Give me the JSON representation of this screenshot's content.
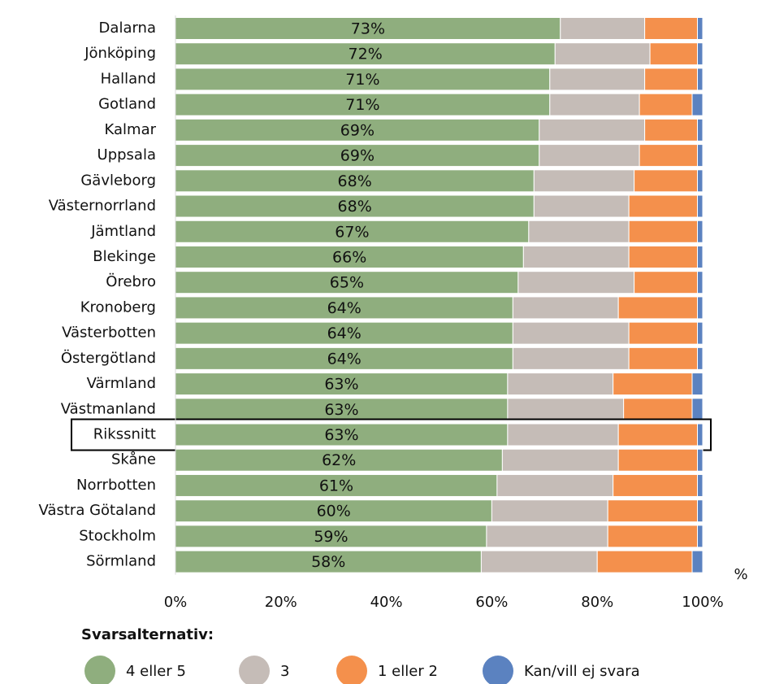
{
  "chart_data": {
    "type": "stacked_bar_horizontal",
    "categories": [
      "Dalarna",
      "Jönköping",
      "Halland",
      "Gotland",
      "Kalmar",
      "Uppsala",
      "Gävleborg",
      "Västernorrland",
      "Jämtland",
      "Blekinge",
      "Örebro",
      "Kronoberg",
      "Västerbotten",
      "Östergötland",
      "Värmland",
      "Västmanland",
      "Rikssnitt",
      "Skåne",
      "Norrbotten",
      "Västra Götaland",
      "Stockholm",
      "Sörmland"
    ],
    "highlight": "Rikssnitt",
    "series": [
      {
        "name": "4 eller 5",
        "color": "#8fae7e",
        "values": [
          73,
          72,
          71,
          71,
          69,
          69,
          68,
          68,
          67,
          66,
          65,
          64,
          64,
          64,
          63,
          63,
          63,
          62,
          61,
          60,
          59,
          58
        ],
        "value_labels": [
          "73%",
          "72%",
          "71%",
          "71%",
          "69%",
          "69%",
          "68%",
          "68%",
          "67%",
          "66%",
          "65%",
          "64%",
          "64%",
          "64%",
          "63%",
          "63%",
          "63%",
          "62%",
          "61%",
          "60%",
          "59%",
          "58%"
        ]
      },
      {
        "name": "3",
        "color": "#c5bcb7",
        "values": [
          16,
          18,
          18,
          17,
          20,
          19,
          19,
          18,
          19,
          20,
          22,
          20,
          22,
          22,
          20,
          22,
          21,
          22,
          22,
          22,
          23,
          22
        ]
      },
      {
        "name": "1 eller 2",
        "color": "#f4904c",
        "values": [
          10,
          9,
          10,
          10,
          10,
          11,
          12,
          13,
          13,
          13,
          12,
          15,
          13,
          13,
          15,
          13,
          15,
          15,
          16,
          17,
          17,
          18
        ]
      },
      {
        "name": "Kan/vill ej svara",
        "color": "#5b82c0",
        "values": [
          1,
          1,
          1,
          2,
          1,
          1,
          1,
          1,
          1,
          1,
          1,
          1,
          1,
          1,
          2,
          2,
          1,
          1,
          1,
          1,
          1,
          2
        ]
      }
    ],
    "xlim": [
      0,
      100
    ],
    "xticks": [
      {
        "value": 0,
        "label": "0%"
      },
      {
        "value": 20,
        "label": "20%"
      },
      {
        "value": 40,
        "label": "40%"
      },
      {
        "value": 60,
        "label": "60%"
      },
      {
        "value": 80,
        "label": "80%"
      },
      {
        "value": 100,
        "label": "100%"
      }
    ],
    "xlabel": "%",
    "legend_title": "Svarsalternativ:",
    "legend": "bottom-left"
  }
}
